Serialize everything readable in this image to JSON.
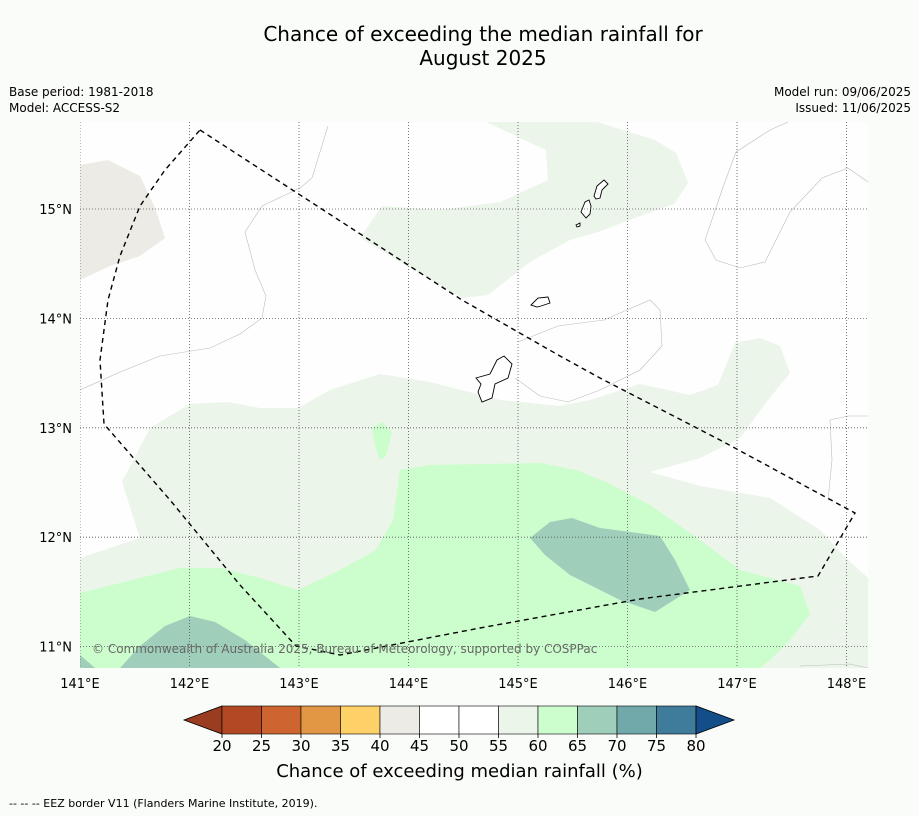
{
  "title": {
    "line1": "Chance of exceeding the median rainfall for",
    "line2": "August 2025"
  },
  "meta": {
    "base_period": "Base period: 1981-2018",
    "model": "Model: ACCESS-S2",
    "model_run": "Model run: 09/06/2025",
    "issued": "Issued: 11/06/2025"
  },
  "map": {
    "lon_range": [
      141,
      148.2
    ],
    "lat_range": [
      10.8,
      15.8
    ],
    "lon_ticks": [
      {
        "value": 141,
        "label": "141°E"
      },
      {
        "value": 142,
        "label": "142°E"
      },
      {
        "value": 143,
        "label": "143°E"
      },
      {
        "value": 144,
        "label": "144°E"
      },
      {
        "value": 145,
        "label": "145°E"
      },
      {
        "value": 146,
        "label": "146°E"
      },
      {
        "value": 147,
        "label": "147°E"
      },
      {
        "value": 148,
        "label": "148°E"
      }
    ],
    "lat_ticks": [
      {
        "value": 15,
        "label": "15°N"
      },
      {
        "value": 14,
        "label": "14°N"
      },
      {
        "value": 13,
        "label": "13°N"
      },
      {
        "value": 12,
        "label": "12°N"
      },
      {
        "value": 11,
        "label": "11°N"
      }
    ],
    "copyright": "© Commonwealth of Australia 2025, Bureau of Meteorology, supported by COSPPac",
    "colors": {
      "c40_45": "#edebe6",
      "c55_60": "#ebf5e9",
      "c60_65": "#ccfdcc",
      "c65_70": "#9fcfba",
      "land": "#ffffff",
      "eez": "#000000"
    }
  },
  "colorbar": {
    "title": "Chance of exceeding median rainfall (%)",
    "ticks": [
      "20",
      "25",
      "30",
      "35",
      "40",
      "45",
      "50",
      "55",
      "60",
      "65",
      "70",
      "75",
      "80"
    ],
    "low_color": "#9a3c1f",
    "high_color": "#134e8a",
    "colors": [
      "#b34924",
      "#ce642f",
      "#e29745",
      "#fdd068",
      "#edebe6",
      "#ffffff",
      "#ffffff",
      "#ebf5e9",
      "#ccfdcc",
      "#9fcfba",
      "#71a9ab",
      "#3f7b9a"
    ]
  },
  "footnote": "--  --  -- EEZ border V11 (Flanders Marine Institute, 2019)."
}
